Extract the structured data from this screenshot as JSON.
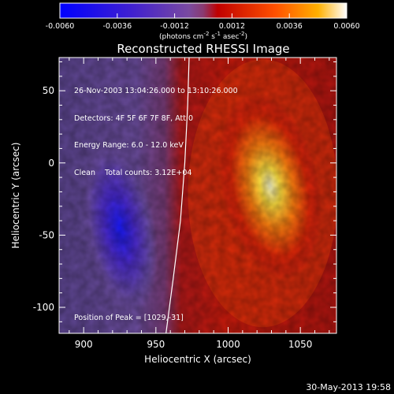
{
  "colorbar": {
    "ticks": [
      "-0.0060",
      "-0.0036",
      "-0.0012",
      "0.0012",
      "0.0036",
      "0.0060"
    ],
    "unit_label": "(photons cm",
    "unit_exp1": "-2",
    "unit_mid": " s",
    "unit_exp2": "-1",
    "unit_mid2": " asec",
    "unit_exp3": "-2",
    "unit_close": ")"
  },
  "title": "Reconstructed RHESSI Image",
  "annotations": {
    "time_range": "26-Nov-2003 13:04:26.000 to 13:10:26.000",
    "detectors": "Detectors: 4F 5F 6F 7F 8F, Att 0",
    "energy": "Energy Range: 6.0 - 12.0 keV",
    "clean": "Clean    Total counts: 3.12E+04",
    "peak": "Position of Peak = [1029,-31]"
  },
  "footer_timestamp": "30-May-2013 19:58",
  "chart_data": {
    "type": "heatmap",
    "title": "Reconstructed RHESSI Image",
    "xlabel": "Heliocentric X (arcsec)",
    "ylabel": "Heliocentric Y (arcsec)",
    "xlim": [
      883,
      1075
    ],
    "ylim": [
      -118,
      73
    ],
    "x_ticks": [
      900,
      950,
      1000,
      1050
    ],
    "y_ticks": [
      -100,
      -50,
      0,
      50
    ],
    "colorbar_range": [
      -0.006,
      0.006
    ],
    "peak": [
      1029,
      -31
    ],
    "peak_value": 0.006,
    "negative_min": [
      925,
      -45
    ],
    "limb": [
      [
        973,
        73
      ],
      [
        972,
        40
      ],
      [
        970,
        0
      ],
      [
        967,
        -40
      ],
      [
        962,
        -80
      ],
      [
        957,
        -118
      ]
    ],
    "colors": {
      "negative": "#1a1aff",
      "zero_side_neg": "#6a4c9c",
      "zero_side_pos": "#c01010",
      "positive": "#ff6010",
      "peak": "#ffffc0"
    }
  }
}
